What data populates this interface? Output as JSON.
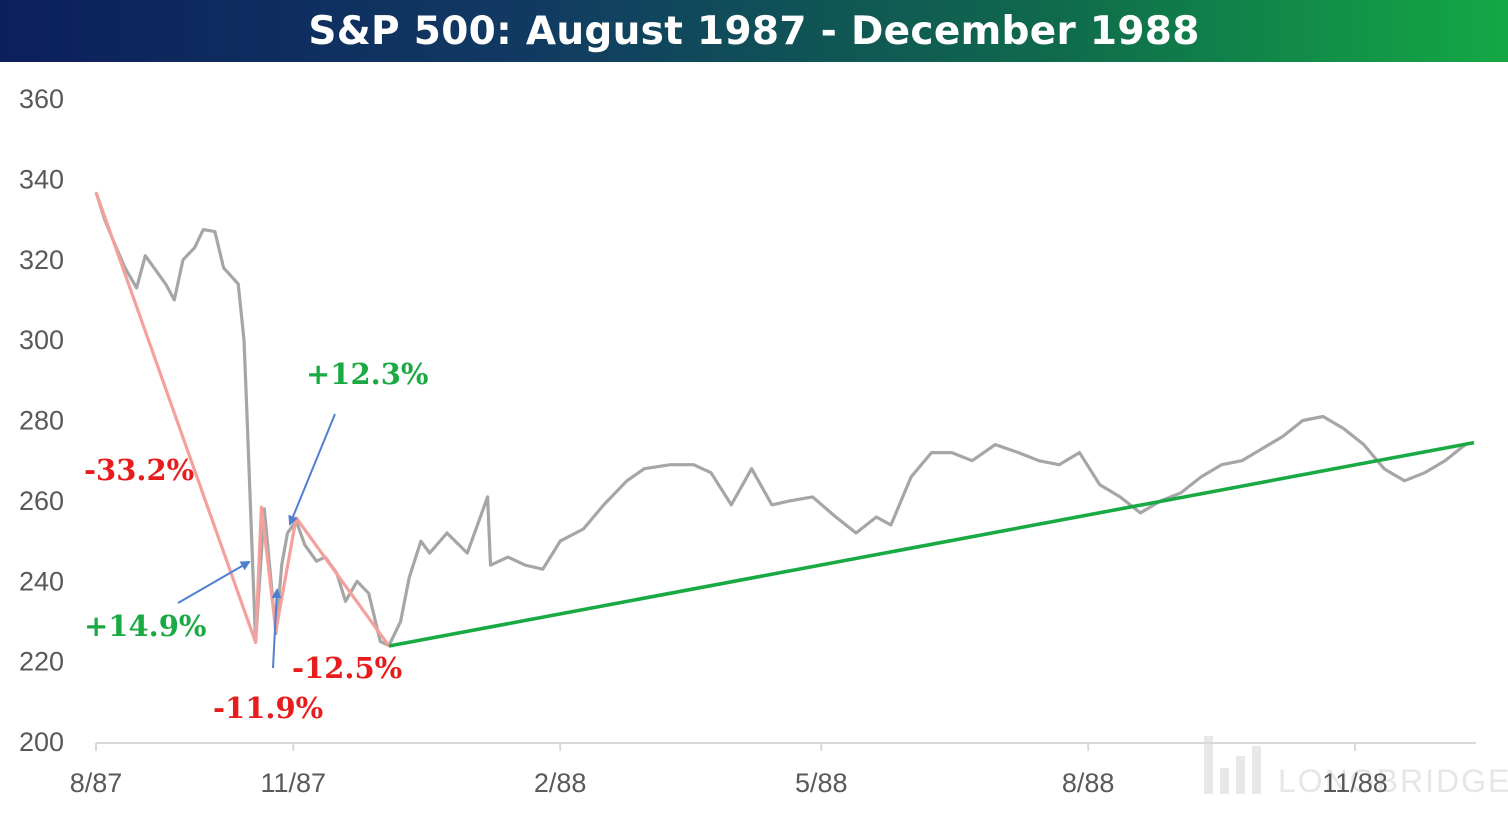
{
  "title": "S&P 500: August 1987 - December 1988",
  "watermark": "LONGBRIDGE",
  "colors": {
    "price_line": "#a6a6a6",
    "decline_line": "#f4a09c",
    "rally_line": "#1aaa44",
    "negative_text": "#e81c1c",
    "positive_text": "#1aaa44",
    "arrow": "#4f7fd0"
  },
  "chart_data": {
    "type": "line",
    "title": "S&P 500: August 1987 - December 1988",
    "xlabel": "",
    "ylabel": "",
    "ylim": [
      200,
      360
    ],
    "y_ticks": [
      200,
      220,
      240,
      260,
      280,
      300,
      320,
      340,
      360
    ],
    "x_ticks": [
      "8/87",
      "11/87",
      "2/88",
      "5/88",
      "8/88",
      "11/88"
    ],
    "grid": false,
    "legend": "none",
    "series": [
      {
        "role": "price",
        "x": [
          "1987-08-25",
          "1987-08-28",
          "1987-09-01",
          "1987-09-04",
          "1987-09-08",
          "1987-09-11",
          "1987-09-15",
          "1987-09-18",
          "1987-09-21",
          "1987-09-24",
          "1987-09-28",
          "1987-10-01",
          "1987-10-05",
          "1987-10-08",
          "1987-10-13",
          "1987-10-15",
          "1987-10-16",
          "1987-10-19",
          "1987-10-20",
          "1987-10-22",
          "1987-10-26",
          "1987-10-28",
          "1987-10-30",
          "1987-11-02",
          "1987-11-05",
          "1987-11-09",
          "1987-11-12",
          "1987-11-16",
          "1987-11-19",
          "1987-11-23",
          "1987-11-27",
          "1987-12-01",
          "1987-12-04",
          "1987-12-08",
          "1987-12-11",
          "1987-12-15",
          "1987-12-18",
          "1987-12-24",
          "1987-12-31",
          "1988-01-07",
          "1988-01-08",
          "1988-01-14",
          "1988-01-20",
          "1988-01-26",
          "1988-02-01",
          "1988-02-09",
          "1988-02-16",
          "1988-02-24",
          "1988-03-01",
          "1988-03-10",
          "1988-03-18",
          "1988-03-24",
          "1988-03-31",
          "1988-04-07",
          "1988-04-14",
          "1988-04-20",
          "1988-04-28",
          "1988-05-06",
          "1988-05-13",
          "1988-05-20",
          "1988-05-25",
          "1988-06-01",
          "1988-06-08",
          "1988-06-15",
          "1988-06-22",
          "1988-06-30",
          "1988-07-08",
          "1988-07-15",
          "1988-07-22",
          "1988-07-29",
          "1988-08-05",
          "1988-08-12",
          "1988-08-19",
          "1988-08-26",
          "1988-09-02",
          "1988-09-09",
          "1988-09-16",
          "1988-09-23",
          "1988-09-30",
          "1988-10-07",
          "1988-10-14",
          "1988-10-21",
          "1988-10-28",
          "1988-11-04",
          "1988-11-11",
          "1988-11-18",
          "1988-11-25",
          "1988-12-02",
          "1988-12-09"
        ],
        "values": [
          336.8,
          330,
          323,
          318,
          313,
          321,
          317,
          314,
          310,
          320,
          323,
          327.5,
          327,
          318,
          314,
          300,
          282,
          224.8,
          236,
          258,
          227,
          244,
          252,
          255,
          249,
          245,
          246,
          242,
          235,
          240,
          237,
          225,
          224,
          230,
          241,
          250,
          247,
          252,
          247,
          261,
          244,
          246,
          244,
          243,
          250,
          253,
          259,
          265,
          268,
          269,
          269,
          267,
          259,
          268,
          259,
          260,
          261,
          256,
          252,
          256,
          254,
          266,
          272,
          272,
          270,
          274,
          272,
          270,
          269,
          272,
          264,
          261,
          257,
          260,
          262,
          266,
          269,
          270,
          273,
          276,
          280,
          281,
          278,
          274,
          268,
          265,
          267,
          270,
          274
        ]
      },
      {
        "role": "declines",
        "x": [
          "1987-08-25",
          "1987-10-19",
          "1987-10-21",
          "1987-10-26",
          "1987-11-02",
          "1987-12-04"
        ],
        "values": [
          336.8,
          224.8,
          258.4,
          227.7,
          255.8,
          223.9
        ]
      },
      {
        "role": "recovery",
        "x": [
          "1987-12-04",
          "1988-12-12"
        ],
        "values": [
          223.9,
          274.5
        ]
      }
    ],
    "annotations": [
      "-33.2%",
      "+14.9%",
      "-11.9%",
      "+12.3%",
      "-12.5%"
    ]
  }
}
